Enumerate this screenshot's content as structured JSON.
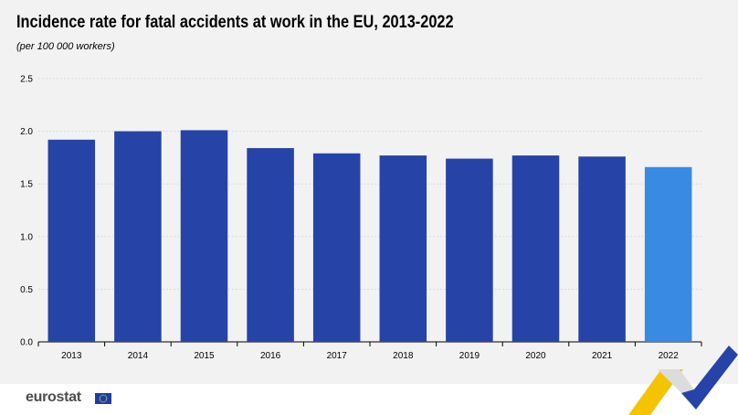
{
  "chart_data": {
    "type": "bar",
    "title": "Incidence rate for fatal accidents at work in the EU, 2013-2022",
    "subtitle": "(per 100 000 workers)",
    "categories": [
      "2013",
      "2014",
      "2015",
      "2016",
      "2017",
      "2018",
      "2019",
      "2020",
      "2021",
      "2022"
    ],
    "values": [
      1.92,
      2.0,
      2.01,
      1.84,
      1.79,
      1.77,
      1.74,
      1.77,
      1.76,
      1.66
    ],
    "ylim": [
      0,
      2.5
    ],
    "yticks": [
      "0.0",
      "0.5",
      "1.0",
      "1.5",
      "2.0",
      "2.5"
    ],
    "grid": true,
    "colors": {
      "bar": "#2644a7",
      "highlight": "#388ae2",
      "grid": "#d9d9d9"
    },
    "highlight_index": 9
  },
  "footer": {
    "brand": "eurostat",
    "eu_flag_icon": "eu-flag-icon",
    "logo_icon": "eurostat-chevron-logo-icon"
  }
}
